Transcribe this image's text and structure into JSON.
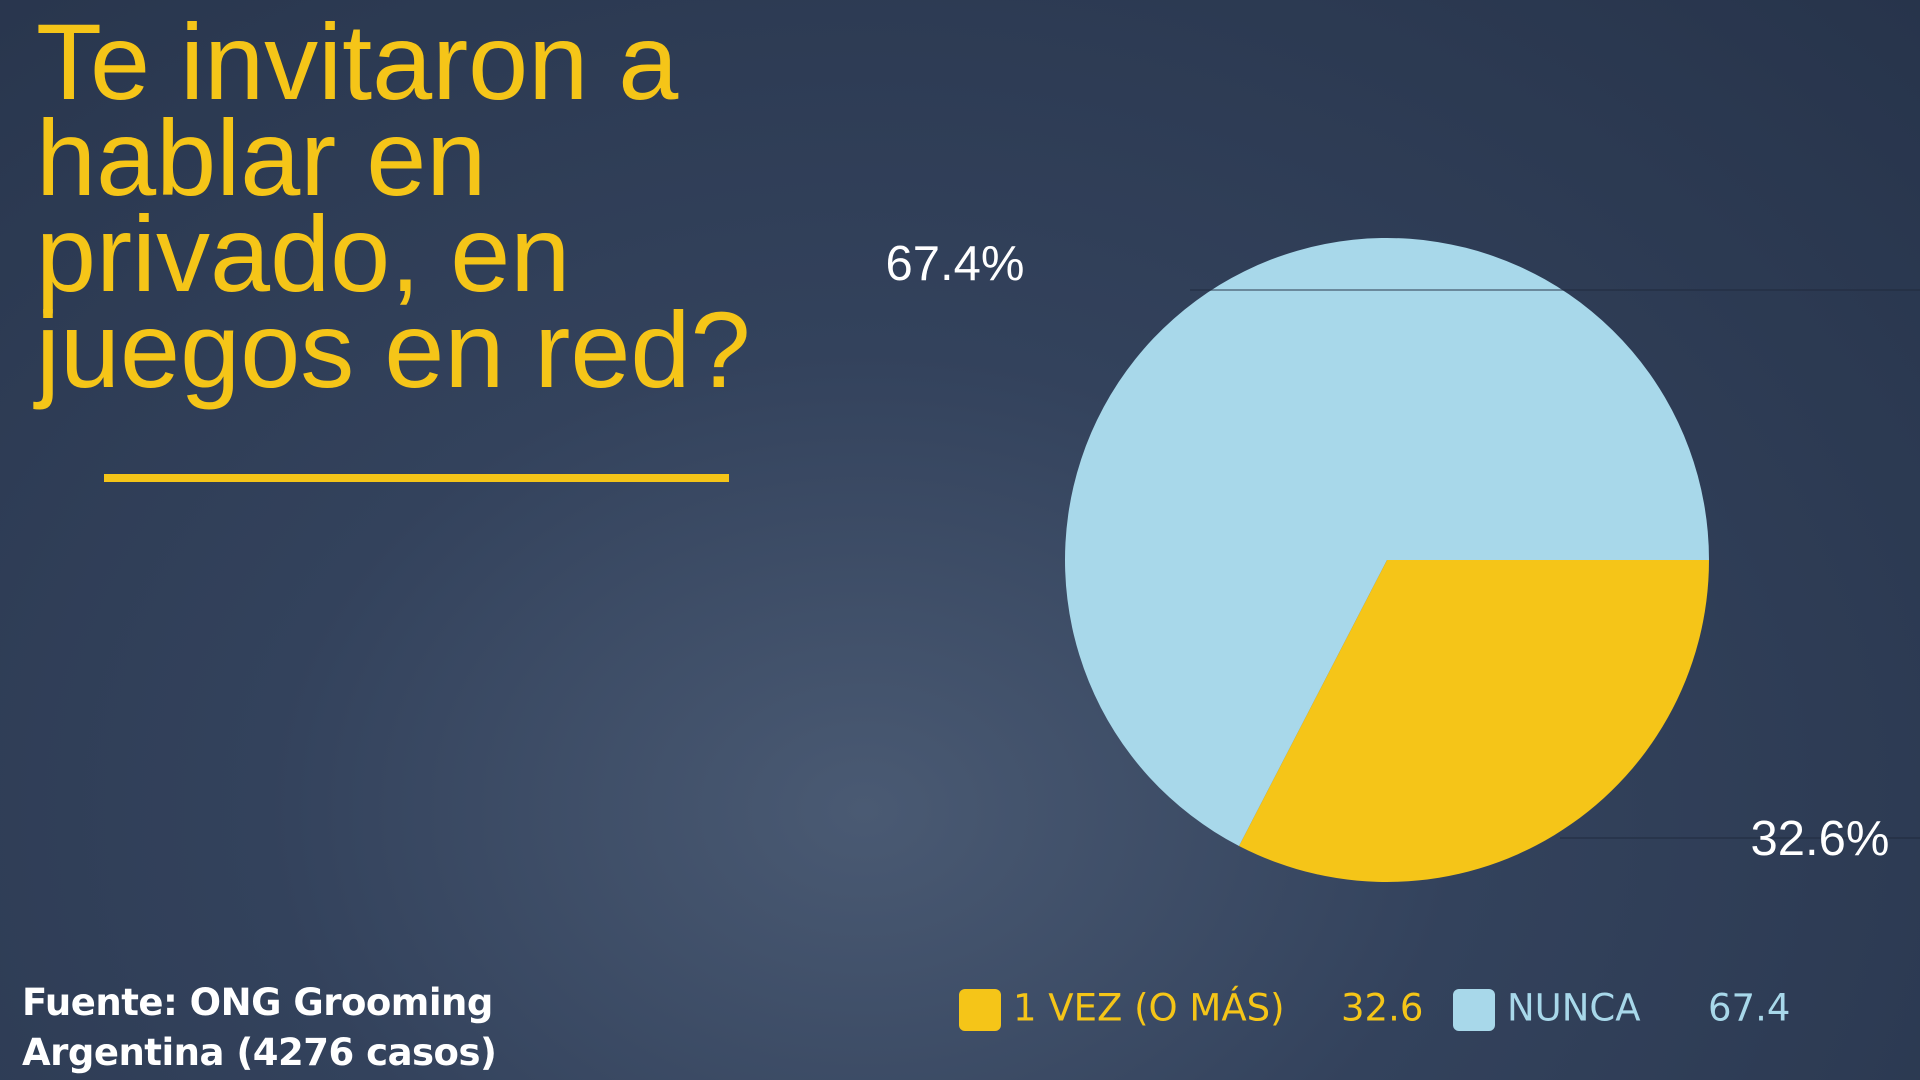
{
  "chart_data": {
    "type": "pie",
    "title": "Te invitaron a hablar en privado, en juegos en red?",
    "categories": [
      "1 VEZ (O MÁS)",
      "NUNCA"
    ],
    "values": [
      32.6,
      67.4
    ],
    "value_labels": [
      "32.6%",
      "67.4%"
    ],
    "colors": [
      "#f5c518",
      "#a8d8ea"
    ],
    "source": "Fuente: ONG Grooming Argentina (4276 casos)"
  }
}
